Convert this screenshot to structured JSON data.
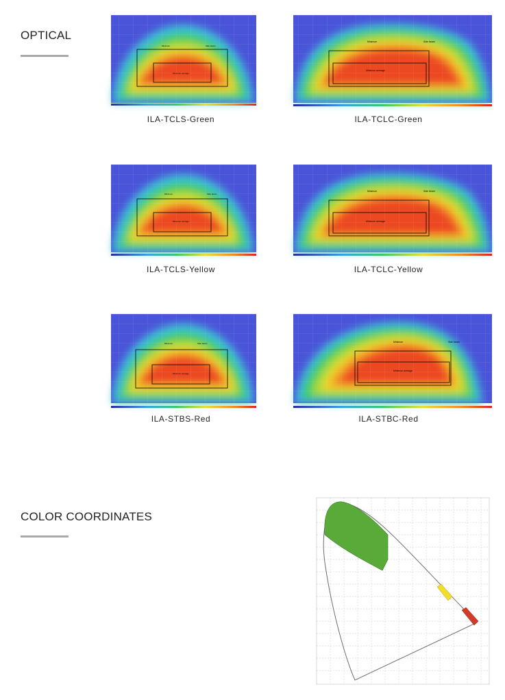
{
  "sections": {
    "optical": "OPTICAL",
    "color": "COLOR COORDINATES"
  },
  "plots": [
    {
      "caption": "ILA-TCLS-Green",
      "box_min": "Minimum",
      "box_side": "Side beam",
      "box_avg": "Minimum average"
    },
    {
      "caption": "ILA-TCLC-Green",
      "box_min": "Minimum",
      "box_side": "Side beam",
      "box_avg": "Minimum average"
    },
    {
      "caption": "ILA-TCLS-Yellow",
      "box_min": "Minimum",
      "box_side": "Side beam",
      "box_avg": "Minimum average"
    },
    {
      "caption": "ILA-TCLC-Yellow",
      "box_min": "Minimum",
      "box_side": "Side beam",
      "box_avg": "Minimum average"
    },
    {
      "caption": "ILA-STBS-Red",
      "box_min": "Minimum",
      "box_side": "Side beam",
      "box_avg": "Minimum average"
    },
    {
      "caption": "ILA-STBC-Red",
      "box_min": "Minimum",
      "box_side": "Side beam",
      "box_avg": "Minimum average"
    }
  ],
  "colors": {
    "green_region": "#5aaa3a",
    "yellow_region": "#f2de2a",
    "red_region": "#d23a2a"
  }
}
